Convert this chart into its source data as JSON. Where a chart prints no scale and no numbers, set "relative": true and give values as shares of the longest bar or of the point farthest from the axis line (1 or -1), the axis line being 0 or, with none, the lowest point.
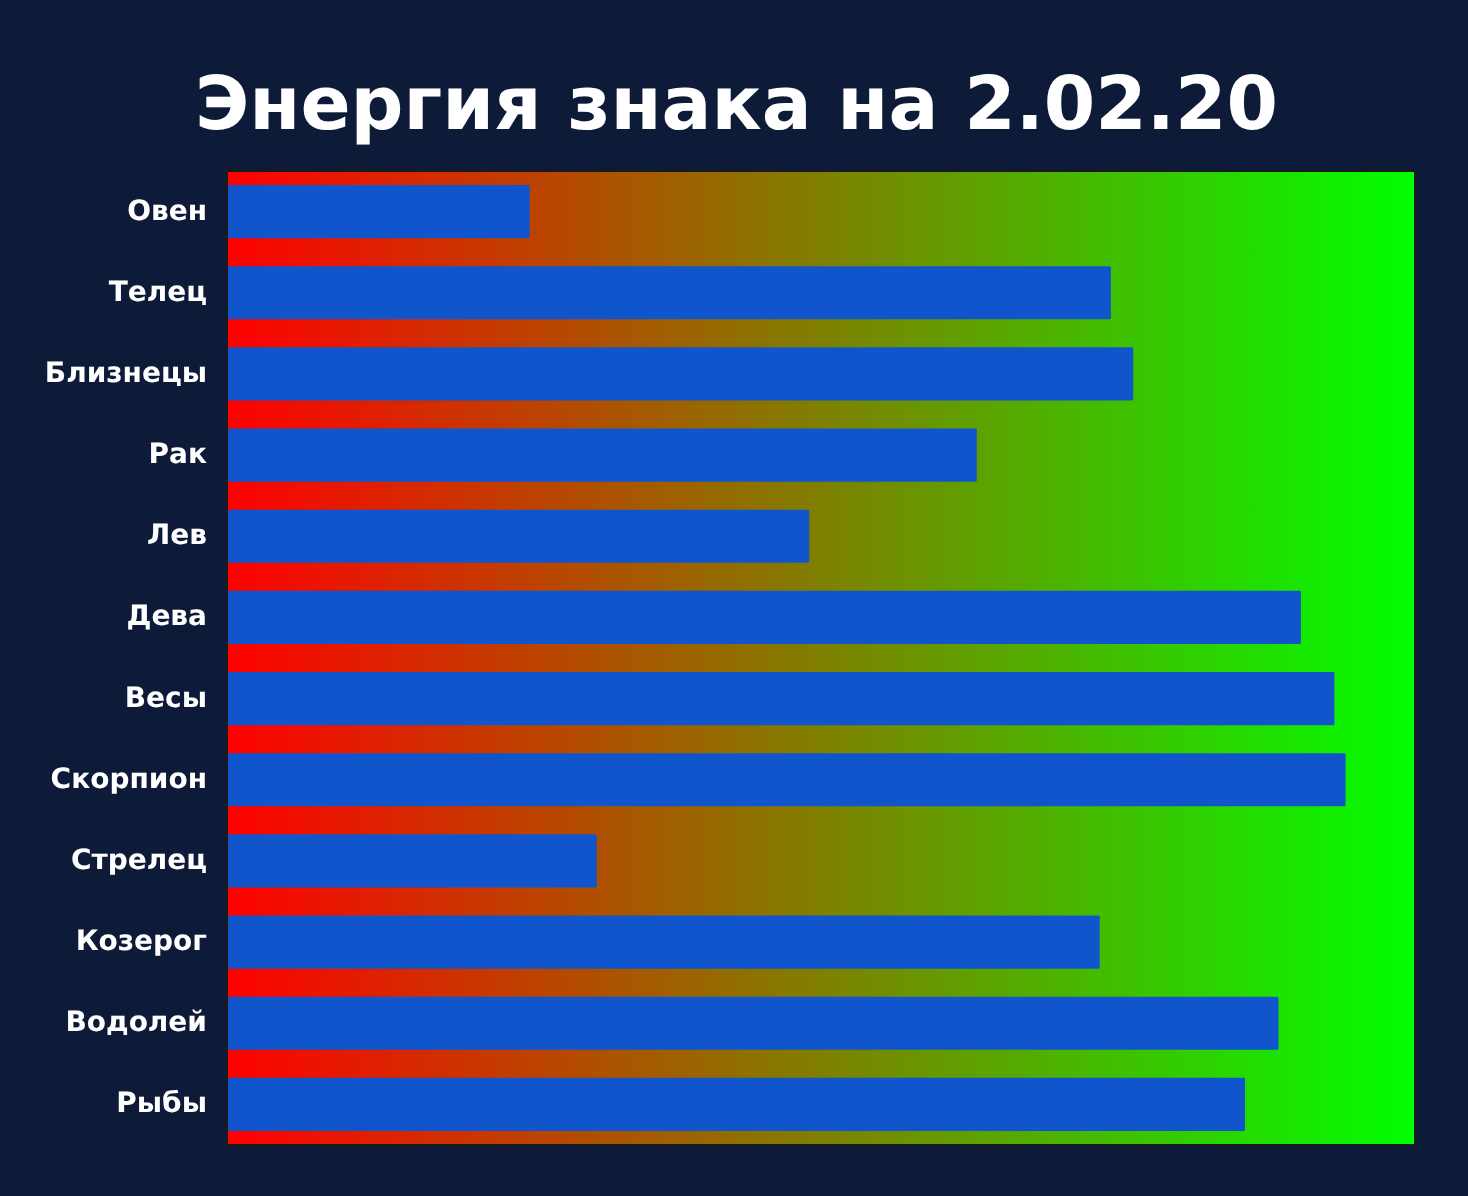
{
  "chart_data": {
    "type": "bar",
    "orientation": "horizontal",
    "relative": true,
    "title": "Энергия знака на 2.02.20",
    "categories": [
      "Овен",
      "Телец",
      "Близнецы",
      "Рак",
      "Лев",
      "Дева",
      "Весы",
      "Скорпион",
      "Стрелец",
      "Козерог",
      "Водолей",
      "Рыбы"
    ],
    "values": [
      0.27,
      0.79,
      0.81,
      0.67,
      0.52,
      0.96,
      0.99,
      1,
      0.33,
      0.78,
      0.94,
      0.91
    ],
    "color": "#1155cc"
  }
}
